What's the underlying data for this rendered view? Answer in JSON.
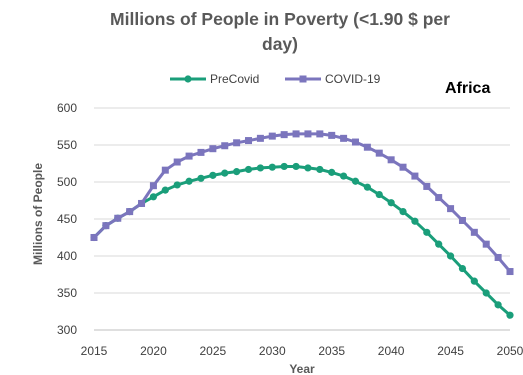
{
  "chart_data": {
    "type": "line",
    "title_lines": [
      "Millions of People in Poverty (<1.90 $ per",
      "day)"
    ],
    "xlabel": "Year",
    "ylabel": "Millions of People",
    "annotation": "Africa",
    "xlim": [
      2015,
      2050
    ],
    "ylim": [
      300,
      600
    ],
    "xticks": [
      "2015",
      "2020",
      "2025",
      "2030",
      "2035",
      "2040",
      "2045",
      "2050"
    ],
    "yticks": [
      "300",
      "350",
      "400",
      "450",
      "500",
      "550",
      "600"
    ],
    "grid": "horizontal",
    "legend_position": "top",
    "series": [
      {
        "name": "PreCovid",
        "color": "#1a9e7a",
        "marker": "circle",
        "x": [
          2015,
          2016,
          2017,
          2018,
          2019,
          2020,
          2021,
          2022,
          2023,
          2024,
          2025,
          2026,
          2027,
          2028,
          2029,
          2030,
          2031,
          2032,
          2033,
          2034,
          2035,
          2036,
          2037,
          2038,
          2039,
          2040,
          2041,
          2042,
          2043,
          2044,
          2045,
          2046,
          2047,
          2048,
          2049,
          2050
        ],
        "values": [
          425,
          441,
          451,
          460,
          471,
          480,
          489,
          496,
          501,
          505,
          509,
          512,
          514,
          517,
          519,
          520,
          521,
          521,
          519,
          517,
          513,
          508,
          501,
          493,
          483,
          472,
          460,
          447,
          432,
          416,
          400,
          383,
          366,
          350,
          334,
          320
        ]
      },
      {
        "name": "COVID-19",
        "color": "#7b75bd",
        "marker": "square",
        "x": [
          2015,
          2016,
          2017,
          2018,
          2019,
          2020,
          2021,
          2022,
          2023,
          2024,
          2025,
          2026,
          2027,
          2028,
          2029,
          2030,
          2031,
          2032,
          2033,
          2034,
          2035,
          2036,
          2037,
          2038,
          2039,
          2040,
          2041,
          2042,
          2043,
          2044,
          2045,
          2046,
          2047,
          2048,
          2049,
          2050
        ],
        "values": [
          425,
          441,
          451,
          460,
          471,
          495,
          516,
          527,
          535,
          540,
          545,
          549,
          553,
          556,
          559,
          562,
          564,
          565,
          565,
          565,
          563,
          559,
          554,
          547,
          539,
          530,
          520,
          508,
          494,
          479,
          464,
          448,
          432,
          416,
          398,
          379
        ]
      }
    ]
  }
}
